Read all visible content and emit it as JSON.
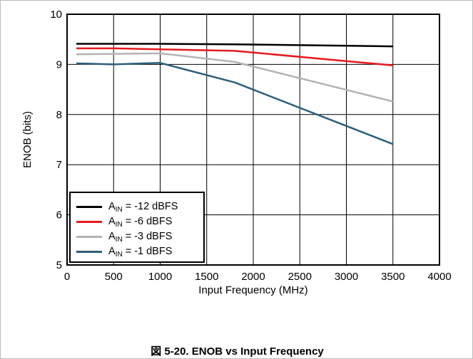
{
  "chart_data": {
    "type": "line",
    "xlabel": "Input Frequency (MHz)",
    "ylabel": "ENOB (bits)",
    "xlim": [
      0,
      4000
    ],
    "ylim": [
      5,
      10
    ],
    "xticks": [
      0,
      500,
      1000,
      1500,
      2000,
      2500,
      3000,
      3500,
      4000
    ],
    "yticks": [
      5,
      6,
      7,
      8,
      9,
      10
    ],
    "grid": true,
    "legend_position": "bottom-left",
    "series": [
      {
        "name": "A_IN = -12 dBFS",
        "label_main": "A",
        "label_sub": "IN",
        "label_rest": " = -12 dBFS",
        "color": "#000000",
        "x": [
          100,
          500,
          1000,
          1800,
          3500
        ],
        "y": [
          9.41,
          9.41,
          9.41,
          9.4,
          9.36
        ]
      },
      {
        "name": "A_IN = -6 dBFS",
        "label_main": "A",
        "label_sub": "IN",
        "label_rest": " = -6 dBFS",
        "color": "#e8191e",
        "x": [
          100,
          500,
          1000,
          1800,
          3500
        ],
        "y": [
          9.32,
          9.32,
          9.3,
          9.27,
          8.98
        ]
      },
      {
        "name": "A_IN = -3 dBFS",
        "label_main": "A",
        "label_sub": "IN",
        "label_rest": " = -3 dBFS",
        "color": "#b4b4b4",
        "x": [
          100,
          500,
          1000,
          1800,
          3500
        ],
        "y": [
          9.2,
          9.21,
          9.22,
          9.05,
          8.26
        ]
      },
      {
        "name": "A_IN = -1 dBFS",
        "label_main": "A",
        "label_sub": "IN",
        "label_rest": " = -1 dBFS",
        "color": "#2e5f7a",
        "x": [
          100,
          500,
          1000,
          1800,
          3500
        ],
        "y": [
          9.02,
          9.0,
          9.03,
          8.64,
          7.41
        ]
      }
    ]
  },
  "caption": "図 5-20. ENOB vs Input Frequency"
}
